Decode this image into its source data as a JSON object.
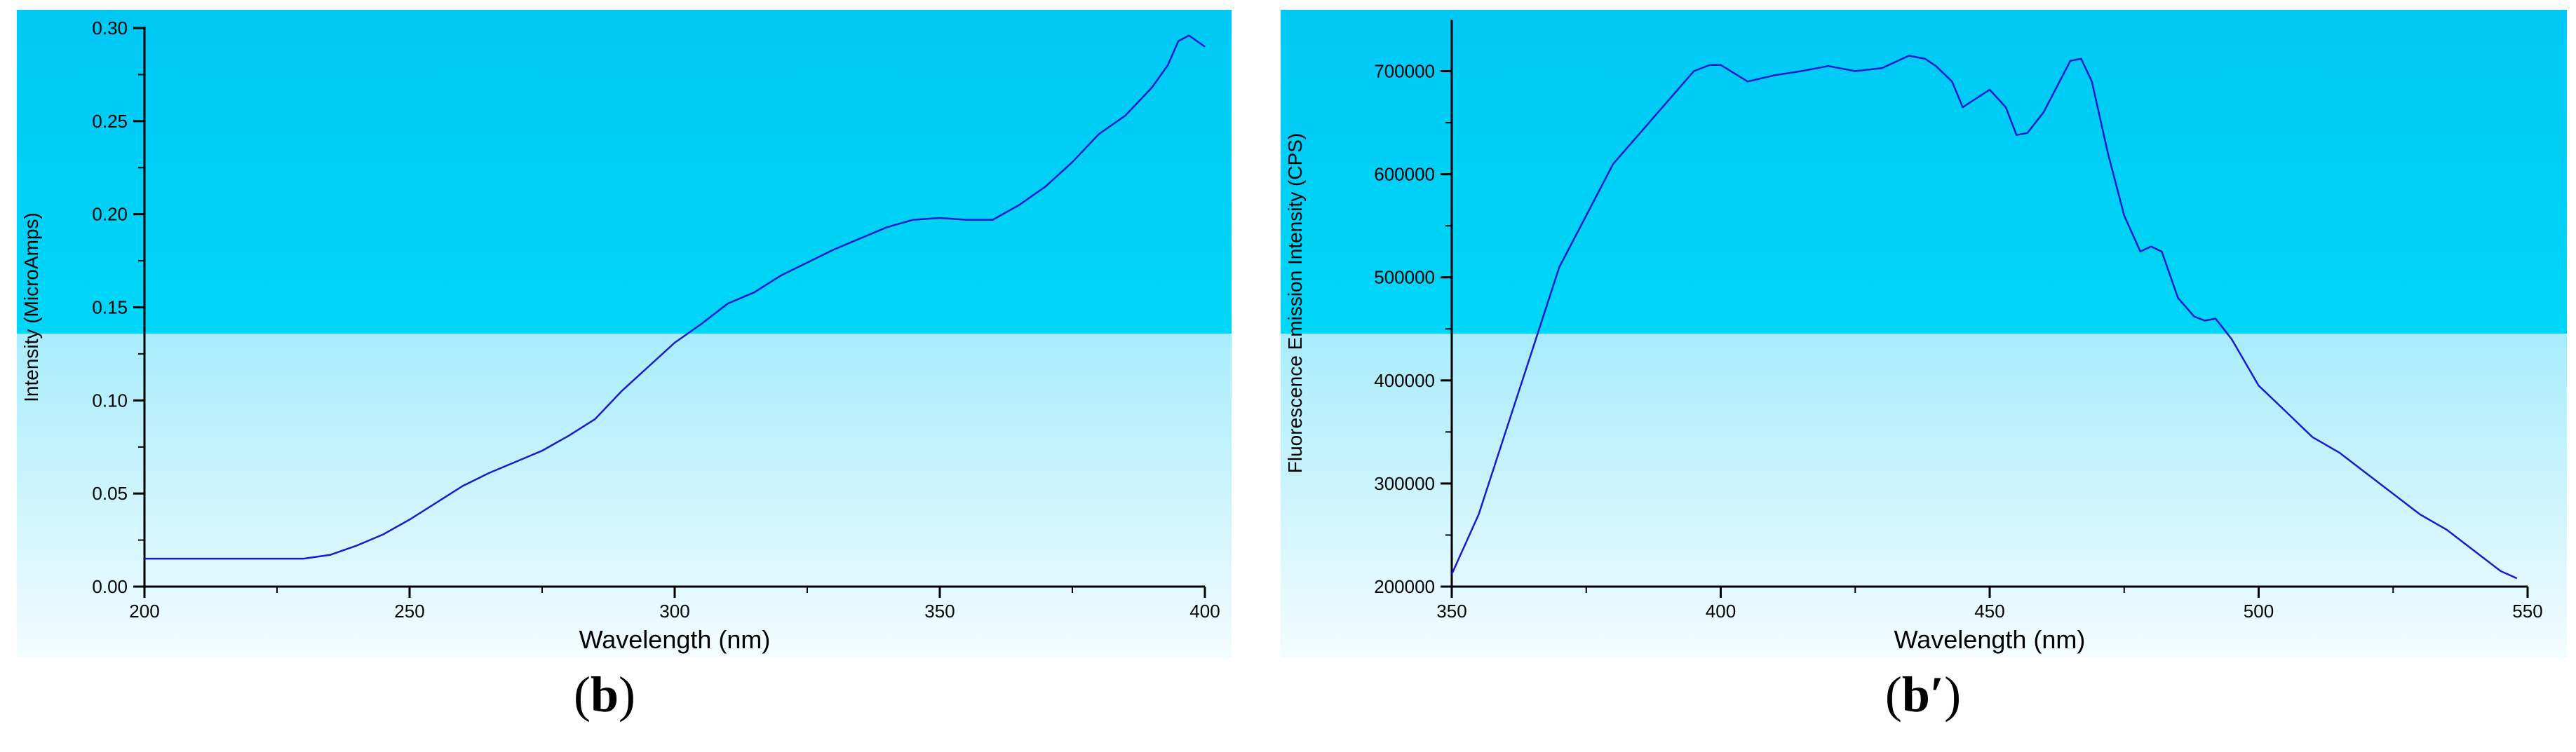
{
  "colors": {
    "bg_top": "#00c8f5",
    "bg_bottom": "#ffffff",
    "line": "#1a1ad0",
    "axis": "#000000"
  },
  "captions": {
    "b": "b",
    "b_prime": "b′"
  },
  "chart_data": [
    {
      "type": "line",
      "xlabel": "Wavelength (nm)",
      "ylabel": "Intensity (MicroAmps)",
      "xlim": [
        200,
        400
      ],
      "ylim": [
        0,
        0.3
      ],
      "xticks": [
        "200",
        "250",
        "300",
        "350",
        "400"
      ],
      "yticks": [
        "0.00",
        "0.05",
        "0.10",
        "0.15",
        "0.20",
        "0.25",
        "0.30"
      ],
      "grid": false,
      "series": [
        {
          "x": [
            200,
            210,
            220,
            230,
            235,
            240,
            245,
            250,
            255,
            260,
            265,
            270,
            275,
            280,
            285,
            290,
            295,
            300,
            305,
            310,
            315,
            320,
            325,
            330,
            335,
            340,
            345,
            350,
            355,
            360,
            365,
            370,
            375,
            380,
            385,
            390,
            393,
            395,
            397,
            400
          ],
          "y": [
            0.015,
            0.015,
            0.015,
            0.015,
            0.017,
            0.022,
            0.028,
            0.036,
            0.045,
            0.054,
            0.061,
            0.067,
            0.073,
            0.081,
            0.09,
            0.105,
            0.118,
            0.131,
            0.141,
            0.152,
            0.158,
            0.167,
            0.174,
            0.181,
            0.187,
            0.193,
            0.197,
            0.198,
            0.197,
            0.197,
            0.205,
            0.215,
            0.228,
            0.243,
            0.253,
            0.268,
            0.28,
            0.293,
            0.296,
            0.29
          ]
        }
      ]
    },
    {
      "type": "line",
      "xlabel": "Wavelength (nm)",
      "ylabel": "Fluorescence Emission Intensity (CPS)",
      "xlim": [
        350,
        550
      ],
      "ylim": [
        200000,
        750000
      ],
      "xticks": [
        "350",
        "400",
        "450",
        "500",
        "550"
      ],
      "yticks": [
        "200000",
        "300000",
        "400000",
        "500000",
        "600000",
        "700000"
      ],
      "grid": false,
      "series": [
        {
          "x": [
            350,
            355,
            360,
            365,
            370,
            375,
            380,
            385,
            390,
            395,
            398,
            400,
            405,
            410,
            415,
            420,
            425,
            430,
            435,
            438,
            440,
            443,
            445,
            450,
            453,
            455,
            457,
            460,
            463,
            465,
            467,
            469,
            472,
            475,
            478,
            480,
            482,
            485,
            488,
            490,
            492,
            495,
            500,
            505,
            510,
            515,
            520,
            525,
            530,
            535,
            540,
            545,
            548
          ],
          "y": [
            212000,
            270000,
            350000,
            430000,
            510000,
            560000,
            610000,
            640000,
            670000,
            700000,
            706000,
            706000,
            690000,
            696000,
            700000,
            705000,
            700000,
            703000,
            715000,
            712000,
            705000,
            690000,
            665000,
            682000,
            665000,
            638000,
            640000,
            660000,
            690000,
            710000,
            712000,
            690000,
            620000,
            560000,
            525000,
            530000,
            525000,
            480000,
            462000,
            458000,
            460000,
            440000,
            395000,
            370000,
            345000,
            330000,
            310000,
            290000,
            270000,
            255000,
            235000,
            215000,
            208000
          ]
        }
      ]
    }
  ]
}
